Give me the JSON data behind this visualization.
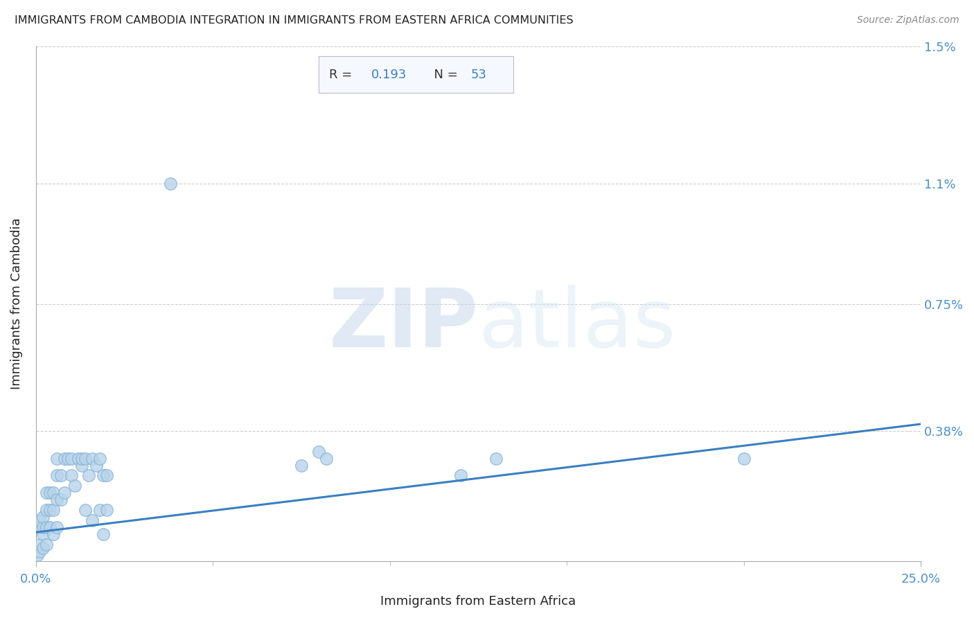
{
  "title": "IMMIGRANTS FROM CAMBODIA INTEGRATION IN IMMIGRANTS FROM EASTERN AFRICA COMMUNITIES",
  "source": "Source: ZipAtlas.com",
  "xlabel": "Immigrants from Eastern Africa",
  "ylabel": "Immigrants from Cambodia",
  "x_min": 0.0,
  "x_max": 0.25,
  "y_min": 0.0,
  "y_max": 0.015,
  "x_ticks": [
    0.0,
    0.25
  ],
  "x_tick_labels": [
    "0.0%",
    "25.0%"
  ],
  "y_ticks": [
    0.0038,
    0.0075,
    0.011,
    0.015
  ],
  "y_tick_labels": [
    "0.38%",
    "0.75%",
    "1.1%",
    "1.5%"
  ],
  "R": 0.193,
  "N": 53,
  "scatter_color": "#b8d4ea",
  "scatter_edge_color": "#89b5d8",
  "line_color": "#3a7fc1",
  "title_color": "#222222",
  "axis_label_color": "#222222",
  "tick_color": "#4a90cc",
  "annotation_box_facecolor": "#f5f8ff",
  "annotation_R_color": "#333333",
  "annotation_N_color": "#3a7fc1",
  "grid_color": "#cccccc",
  "scatter_data": [
    [
      0.0005,
      0.0002
    ],
    [
      0.001,
      0.0003
    ],
    [
      0.001,
      0.0005
    ],
    [
      0.001,
      0.001
    ],
    [
      0.001,
      0.0012
    ],
    [
      0.002,
      0.0004
    ],
    [
      0.002,
      0.0008
    ],
    [
      0.002,
      0.001
    ],
    [
      0.002,
      0.0013
    ],
    [
      0.003,
      0.0005
    ],
    [
      0.003,
      0.001
    ],
    [
      0.003,
      0.0015
    ],
    [
      0.003,
      0.002
    ],
    [
      0.004,
      0.001
    ],
    [
      0.004,
      0.0015
    ],
    [
      0.004,
      0.002
    ],
    [
      0.005,
      0.0008
    ],
    [
      0.005,
      0.0015
    ],
    [
      0.005,
      0.002
    ],
    [
      0.006,
      0.001
    ],
    [
      0.006,
      0.0018
    ],
    [
      0.006,
      0.0025
    ],
    [
      0.006,
      0.003
    ],
    [
      0.007,
      0.0018
    ],
    [
      0.007,
      0.0025
    ],
    [
      0.008,
      0.002
    ],
    [
      0.008,
      0.003
    ],
    [
      0.009,
      0.003
    ],
    [
      0.01,
      0.0025
    ],
    [
      0.01,
      0.003
    ],
    [
      0.011,
      0.0022
    ],
    [
      0.012,
      0.003
    ],
    [
      0.013,
      0.0028
    ],
    [
      0.013,
      0.003
    ],
    [
      0.014,
      0.0015
    ],
    [
      0.014,
      0.003
    ],
    [
      0.015,
      0.0025
    ],
    [
      0.016,
      0.0012
    ],
    [
      0.016,
      0.003
    ],
    [
      0.017,
      0.0028
    ],
    [
      0.018,
      0.0015
    ],
    [
      0.018,
      0.003
    ],
    [
      0.019,
      0.0008
    ],
    [
      0.019,
      0.0025
    ],
    [
      0.02,
      0.0015
    ],
    [
      0.02,
      0.0025
    ],
    [
      0.075,
      0.0028
    ],
    [
      0.08,
      0.0032
    ],
    [
      0.082,
      0.003
    ],
    [
      0.12,
      0.0025
    ],
    [
      0.13,
      0.003
    ],
    [
      0.038,
      0.011
    ],
    [
      0.2,
      0.003
    ]
  ],
  "line_x": [
    0.0,
    0.25
  ],
  "line_y": [
    0.00085,
    0.004
  ]
}
